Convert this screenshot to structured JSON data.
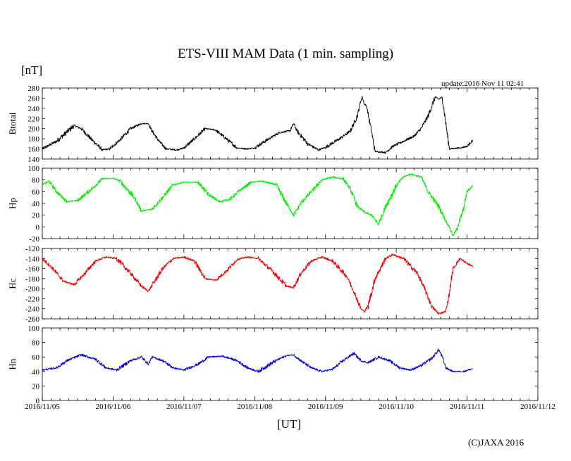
{
  "title": "ETS-VIII MAM Data (1 min. sampling)",
  "unit_label": "[nT]",
  "update_text": "update:2016 Nov 11 02:41",
  "x_axis_label": "[UT]",
  "copyright": "(C)JAXA 2016",
  "chart_data": {
    "type": "line",
    "title": "ETS-VIII MAM Data (1 min. sampling)",
    "xlabel": "[UT]",
    "x_ticks": [
      "2016/11/05",
      "2016/11/06",
      "2016/11/07",
      "2016/11/08",
      "2016/11/09",
      "2016/11/10",
      "2016/11/11",
      "2016/11/12"
    ],
    "x_units": "days since 2016/11/05 00:00 UT",
    "xlim": [
      0,
      7
    ],
    "grid": false,
    "panels": [
      {
        "name": "Btotal",
        "ylabel": "Btotal",
        "color": "#000000",
        "ylim": [
          140,
          280
        ],
        "yticks": [
          140,
          160,
          180,
          200,
          220,
          240,
          260,
          280
        ],
        "points": [
          [
            0.0,
            160
          ],
          [
            0.2,
            175
          ],
          [
            0.45,
            206
          ],
          [
            0.55,
            200
          ],
          [
            0.7,
            178
          ],
          [
            0.85,
            158
          ],
          [
            0.95,
            160
          ],
          [
            1.1,
            178
          ],
          [
            1.25,
            200
          ],
          [
            1.4,
            210
          ],
          [
            1.5,
            210
          ],
          [
            1.55,
            195
          ],
          [
            1.65,
            175
          ],
          [
            1.75,
            160
          ],
          [
            1.9,
            158
          ],
          [
            2.0,
            162
          ],
          [
            2.15,
            180
          ],
          [
            2.3,
            200
          ],
          [
            2.45,
            197
          ],
          [
            2.6,
            180
          ],
          [
            2.75,
            162
          ],
          [
            2.9,
            160
          ],
          [
            3.0,
            162
          ],
          [
            3.2,
            180
          ],
          [
            3.35,
            192
          ],
          [
            3.5,
            196
          ],
          [
            3.55,
            210
          ],
          [
            3.6,
            195
          ],
          [
            3.75,
            170
          ],
          [
            3.9,
            158
          ],
          [
            4.0,
            163
          ],
          [
            4.2,
            180
          ],
          [
            4.35,
            195
          ],
          [
            4.45,
            225
          ],
          [
            4.5,
            255
          ],
          [
            4.52,
            262
          ],
          [
            4.55,
            248
          ],
          [
            4.58,
            245
          ],
          [
            4.6,
            230
          ],
          [
            4.65,
            195
          ],
          [
            4.7,
            155
          ],
          [
            4.85,
            153
          ],
          [
            4.95,
            165
          ],
          [
            5.1,
            175
          ],
          [
            5.25,
            185
          ],
          [
            5.35,
            200
          ],
          [
            5.45,
            225
          ],
          [
            5.55,
            262
          ],
          [
            5.6,
            258
          ],
          [
            5.65,
            262
          ],
          [
            5.7,
            210
          ],
          [
            5.75,
            160
          ],
          [
            5.9,
            162
          ],
          [
            6.0,
            165
          ],
          [
            6.08,
            177
          ]
        ]
      },
      {
        "name": "Hp",
        "ylabel": "Hp",
        "color": "#00ee00",
        "ylim": [
          -20,
          100
        ],
        "yticks": [
          -20,
          0,
          20,
          40,
          60,
          80,
          100
        ],
        "points": [
          [
            0.0,
            72
          ],
          [
            0.1,
            78
          ],
          [
            0.2,
            60
          ],
          [
            0.35,
            43
          ],
          [
            0.5,
            45
          ],
          [
            0.7,
            65
          ],
          [
            0.85,
            82
          ],
          [
            1.0,
            83
          ],
          [
            1.1,
            78
          ],
          [
            1.3,
            50
          ],
          [
            1.4,
            27
          ],
          [
            1.55,
            30
          ],
          [
            1.7,
            50
          ],
          [
            1.85,
            72
          ],
          [
            2.0,
            76
          ],
          [
            2.2,
            76
          ],
          [
            2.35,
            55
          ],
          [
            2.5,
            43
          ],
          [
            2.65,
            47
          ],
          [
            2.8,
            63
          ],
          [
            2.95,
            76
          ],
          [
            3.1,
            78
          ],
          [
            3.3,
            72
          ],
          [
            3.45,
            40
          ],
          [
            3.55,
            20
          ],
          [
            3.65,
            40
          ],
          [
            3.8,
            60
          ],
          [
            3.95,
            80
          ],
          [
            4.1,
            85
          ],
          [
            4.25,
            82
          ],
          [
            4.35,
            65
          ],
          [
            4.45,
            35
          ],
          [
            4.55,
            25
          ],
          [
            4.65,
            20
          ],
          [
            4.75,
            5
          ],
          [
            4.85,
            35
          ],
          [
            5.0,
            70
          ],
          [
            5.1,
            85
          ],
          [
            5.2,
            90
          ],
          [
            5.35,
            85
          ],
          [
            5.45,
            60
          ],
          [
            5.6,
            35
          ],
          [
            5.7,
            10
          ],
          [
            5.75,
            0
          ],
          [
            5.8,
            -15
          ],
          [
            5.85,
            -5
          ],
          [
            5.95,
            30
          ],
          [
            6.0,
            60
          ],
          [
            6.08,
            70
          ]
        ]
      },
      {
        "name": "Hc",
        "ylabel": "Hc",
        "color": "#ee0000",
        "ylim": [
          -260,
          -120
        ],
        "yticks": [
          -260,
          -240,
          -220,
          -200,
          -180,
          -160,
          -140,
          -120
        ],
        "points": [
          [
            0.0,
            -140
          ],
          [
            0.15,
            -160
          ],
          [
            0.3,
            -185
          ],
          [
            0.45,
            -192
          ],
          [
            0.6,
            -170
          ],
          [
            0.75,
            -145
          ],
          [
            0.9,
            -137
          ],
          [
            1.05,
            -140
          ],
          [
            1.25,
            -170
          ],
          [
            1.4,
            -195
          ],
          [
            1.5,
            -205
          ],
          [
            1.55,
            -193
          ],
          [
            1.7,
            -160
          ],
          [
            1.85,
            -140
          ],
          [
            2.0,
            -137
          ],
          [
            2.15,
            -145
          ],
          [
            2.3,
            -180
          ],
          [
            2.45,
            -183
          ],
          [
            2.6,
            -165
          ],
          [
            2.75,
            -142
          ],
          [
            2.9,
            -137
          ],
          [
            3.05,
            -140
          ],
          [
            3.25,
            -165
          ],
          [
            3.45,
            -195
          ],
          [
            3.55,
            -198
          ],
          [
            3.65,
            -170
          ],
          [
            3.8,
            -145
          ],
          [
            3.95,
            -137
          ],
          [
            4.1,
            -145
          ],
          [
            4.3,
            -175
          ],
          [
            4.4,
            -205
          ],
          [
            4.5,
            -240
          ],
          [
            4.55,
            -245
          ],
          [
            4.6,
            -235
          ],
          [
            4.7,
            -180
          ],
          [
            4.85,
            -140
          ],
          [
            4.95,
            -132
          ],
          [
            5.1,
            -140
          ],
          [
            5.3,
            -170
          ],
          [
            5.4,
            -200
          ],
          [
            5.5,
            -235
          ],
          [
            5.6,
            -250
          ],
          [
            5.7,
            -245
          ],
          [
            5.75,
            -210
          ],
          [
            5.8,
            -160
          ],
          [
            5.9,
            -140
          ],
          [
            6.0,
            -150
          ],
          [
            6.08,
            -155
          ]
        ]
      },
      {
        "name": "Hn",
        "ylabel": "Hn",
        "color": "#0000dd",
        "ylim": [
          0,
          100
        ],
        "yticks": [
          0,
          20,
          40,
          60,
          80,
          100
        ],
        "points": [
          [
            0.0,
            42
          ],
          [
            0.2,
            45
          ],
          [
            0.35,
            55
          ],
          [
            0.55,
            63
          ],
          [
            0.75,
            57
          ],
          [
            0.9,
            45
          ],
          [
            1.05,
            42
          ],
          [
            1.25,
            55
          ],
          [
            1.4,
            60
          ],
          [
            1.5,
            50
          ],
          [
            1.55,
            60
          ],
          [
            1.7,
            55
          ],
          [
            1.85,
            45
          ],
          [
            2.0,
            42
          ],
          [
            2.2,
            50
          ],
          [
            2.35,
            60
          ],
          [
            2.55,
            61
          ],
          [
            2.75,
            55
          ],
          [
            2.9,
            45
          ],
          [
            3.05,
            40
          ],
          [
            3.3,
            55
          ],
          [
            3.45,
            62
          ],
          [
            3.55,
            63
          ],
          [
            3.65,
            55
          ],
          [
            3.8,
            45
          ],
          [
            3.95,
            40
          ],
          [
            4.1,
            43
          ],
          [
            4.25,
            55
          ],
          [
            4.4,
            65
          ],
          [
            4.5,
            55
          ],
          [
            4.6,
            52
          ],
          [
            4.75,
            60
          ],
          [
            4.9,
            55
          ],
          [
            5.05,
            45
          ],
          [
            5.2,
            42
          ],
          [
            5.35,
            48
          ],
          [
            5.5,
            58
          ],
          [
            5.6,
            70
          ],
          [
            5.65,
            60
          ],
          [
            5.7,
            45
          ],
          [
            5.8,
            40
          ],
          [
            5.95,
            40
          ],
          [
            6.08,
            44
          ]
        ]
      }
    ]
  }
}
